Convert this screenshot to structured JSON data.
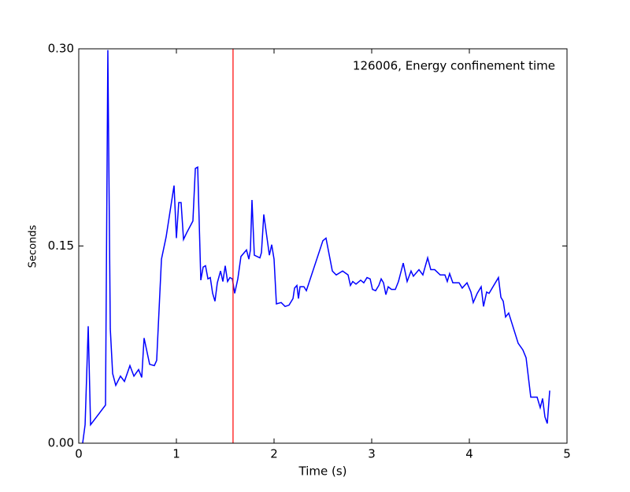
{
  "chart_data": {
    "type": "line",
    "title": "126006, Energy confinement time",
    "xlabel": "Time (s)",
    "ylabel": "Seconds",
    "xlim": [
      0,
      5
    ],
    "ylim": [
      0,
      0.3
    ],
    "xticks": [
      0,
      1,
      2,
      3,
      4,
      5
    ],
    "yticks": [
      {
        "value": 0,
        "label": "0.00"
      },
      0.15,
      {
        "value": 0.3,
        "label": "0.30"
      }
    ],
    "color": "#0000ff",
    "title_color": "#0000ff",
    "vline": {
      "x": 1.58,
      "color": "#ff0000"
    },
    "x": [
      0.04,
      0.065,
      0.097,
      0.121,
      0.274,
      0.298,
      0.323,
      0.347,
      0.379,
      0.427,
      0.468,
      0.524,
      0.565,
      0.613,
      0.645,
      0.669,
      0.726,
      0.774,
      0.798,
      0.847,
      0.895,
      0.976,
      1.0,
      1.024,
      1.048,
      1.073,
      1.105,
      1.169,
      1.194,
      1.218,
      1.25,
      1.274,
      1.298,
      1.323,
      1.347,
      1.371,
      1.395,
      1.419,
      1.452,
      1.476,
      1.5,
      1.524,
      1.548,
      1.573,
      1.597,
      1.629,
      1.661,
      1.718,
      1.742,
      1.758,
      1.774,
      1.798,
      1.855,
      1.871,
      1.895,
      1.952,
      1.976,
      2.0,
      2.024,
      2.073,
      2.113,
      2.153,
      2.194,
      2.21,
      2.234,
      2.25,
      2.266,
      2.306,
      2.331,
      2.5,
      2.532,
      2.597,
      2.637,
      2.702,
      2.758,
      2.782,
      2.806,
      2.839,
      2.887,
      2.919,
      2.952,
      2.984,
      3.008,
      3.04,
      3.073,
      3.097,
      3.121,
      3.145,
      3.169,
      3.202,
      3.242,
      3.274,
      3.323,
      3.363,
      3.403,
      3.427,
      3.484,
      3.524,
      3.573,
      3.605,
      3.645,
      3.702,
      3.75,
      3.774,
      3.798,
      3.831,
      3.895,
      3.927,
      3.976,
      4.016,
      4.04,
      4.081,
      4.121,
      4.145,
      4.177,
      4.202,
      4.298,
      4.323,
      4.347,
      4.371,
      4.403,
      4.5,
      4.548,
      4.581,
      4.629,
      4.694,
      4.726,
      4.75,
      4.774,
      4.798,
      4.823
    ],
    "values": [
      0,
      0.014,
      0.089,
      0.014,
      0.029,
      0.299,
      0.087,
      0.053,
      0.044,
      0.051,
      0.047,
      0.059,
      0.051,
      0.056,
      0.05,
      0.08,
      0.06,
      0.059,
      0.063,
      0.14,
      0.157,
      0.196,
      0.156,
      0.183,
      0.183,
      0.155,
      0.16,
      0.169,
      0.209,
      0.21,
      0.124,
      0.134,
      0.135,
      0.125,
      0.126,
      0.114,
      0.108,
      0.122,
      0.131,
      0.123,
      0.135,
      0.123,
      0.126,
      0.125,
      0.114,
      0.125,
      0.142,
      0.147,
      0.14,
      0.147,
      0.185,
      0.143,
      0.141,
      0.145,
      0.174,
      0.143,
      0.151,
      0.14,
      0.106,
      0.107,
      0.104,
      0.105,
      0.11,
      0.118,
      0.12,
      0.11,
      0.119,
      0.119,
      0.116,
      0.154,
      0.156,
      0.131,
      0.128,
      0.131,
      0.128,
      0.12,
      0.123,
      0.121,
      0.124,
      0.122,
      0.126,
      0.125,
      0.117,
      0.116,
      0.12,
      0.125,
      0.122,
      0.113,
      0.119,
      0.117,
      0.117,
      0.123,
      0.137,
      0.123,
      0.131,
      0.127,
      0.132,
      0.128,
      0.141,
      0.132,
      0.132,
      0.128,
      0.128,
      0.123,
      0.129,
      0.122,
      0.122,
      0.118,
      0.122,
      0.115,
      0.107,
      0.114,
      0.119,
      0.104,
      0.115,
      0.114,
      0.126,
      0.111,
      0.108,
      0.096,
      0.099,
      0.076,
      0.071,
      0.065,
      0.035,
      0.035,
      0.027,
      0.034,
      0.02,
      0.015,
      0.04
    ]
  }
}
